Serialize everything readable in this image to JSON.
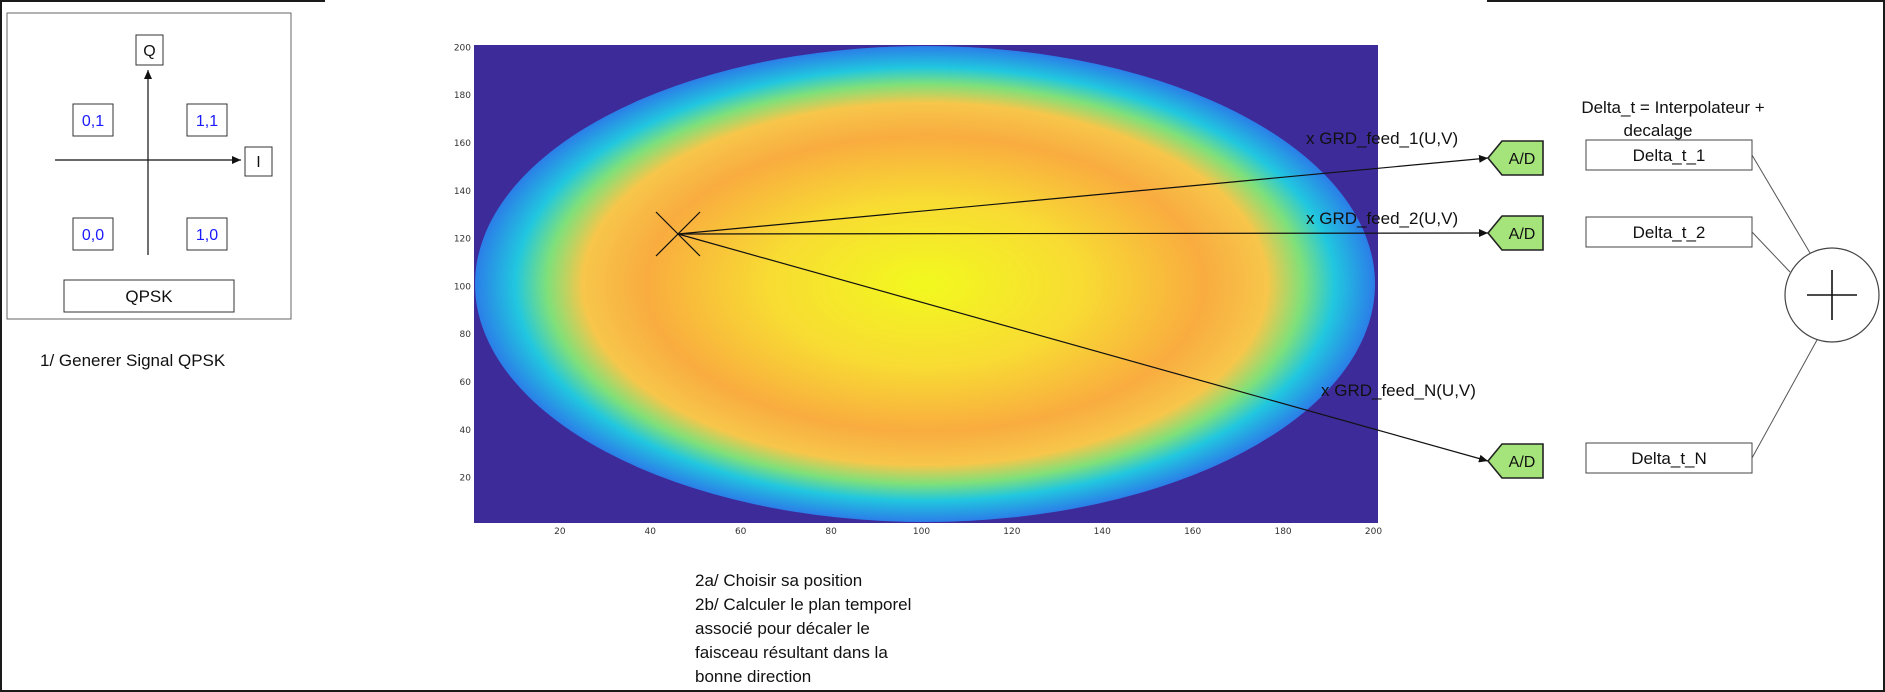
{
  "qpsk": {
    "axis_q": "Q",
    "axis_i": "I",
    "symbols": [
      "0,1",
      "1,1",
      "0,0",
      "1,0"
    ],
    "title": "QPSK",
    "caption": "1/ Generer Signal QPSK"
  },
  "heatmap": {
    "x_ticks": [
      20,
      40,
      60,
      80,
      100,
      120,
      140,
      160,
      180,
      200
    ],
    "y_ticks": [
      20,
      40,
      60,
      80,
      100,
      120,
      140,
      160,
      180,
      200
    ],
    "x_range": [
      1,
      201
    ],
    "y_range": [
      1,
      201
    ],
    "colormap": [
      "#3d2b99",
      "#21c7df",
      "#7fe07a",
      "#f7c64a",
      "#f9ac3f",
      "#f2f91e"
    ],
    "marker_position": [
      46,
      121
    ]
  },
  "feeds": [
    {
      "label": "x GRD_feed_1(U,V)",
      "adc": "A/D",
      "delay": "Delta_t_1"
    },
    {
      "label": "x GRD_feed_2(U,V)",
      "adc": "A/D",
      "delay": "Delta_t_2"
    },
    {
      "label": "x GRD_feed_N(U,V)",
      "adc": "A/D",
      "delay": "Delta_t_N"
    }
  ],
  "delta_header": [
    "Delta_t = Interpolateur +",
    "decalage"
  ],
  "adc_color": "#a5e47a",
  "step2_caption": "2a/ Choisir sa position\n2b/ Calculer le plan temporel\nassocié pour décaler le\nfaisceau résultant dans la\nbonne direction"
}
